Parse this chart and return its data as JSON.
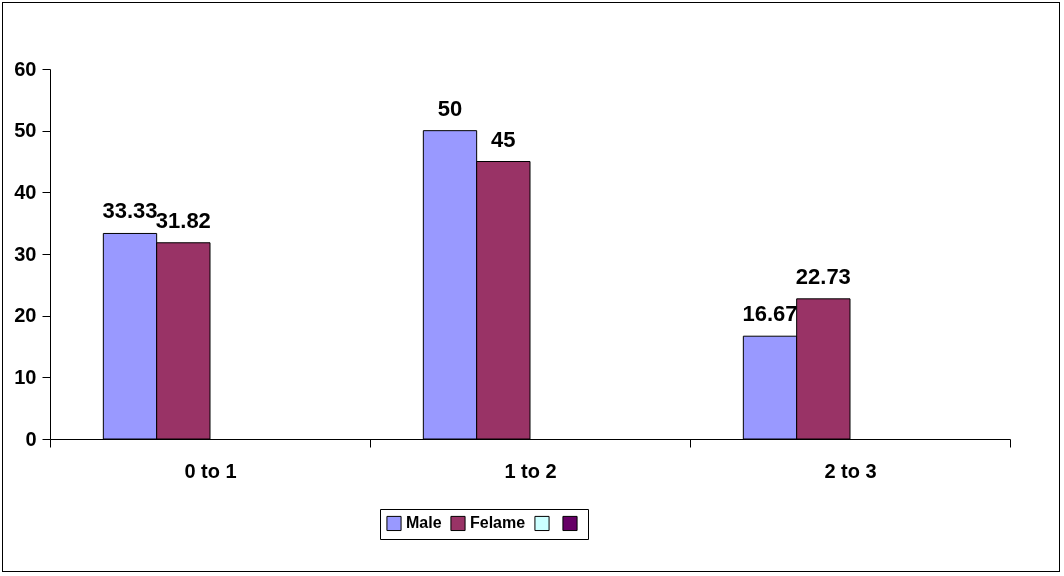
{
  "chart_data": {
    "type": "bar",
    "categories": [
      "0 to 1",
      "1 to 2",
      "2 to 3"
    ],
    "series": [
      {
        "name": "Male",
        "color": "#9999ff",
        "values": [
          33.33,
          50,
          16.67
        ]
      },
      {
        "name": "Felame",
        "color": "#993366",
        "values": [
          31.82,
          45,
          22.73
        ]
      },
      {
        "color": "#ccffff",
        "values": [
          null,
          null,
          null
        ]
      },
      {
        "color": "#660066",
        "values": [
          null,
          null,
          null
        ]
      }
    ],
    "ylim": [
      0,
      60
    ],
    "yticks": [
      0,
      10,
      20,
      30,
      40,
      50,
      60
    ],
    "data_labels": true,
    "legend": "bottom",
    "grid": false
  }
}
